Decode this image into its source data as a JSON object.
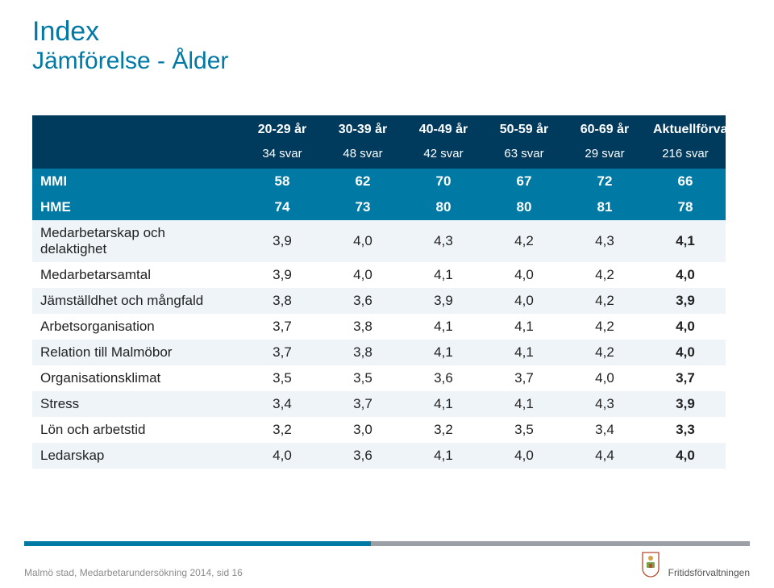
{
  "colors": {
    "brand_blue": "#0079a5",
    "header_navy": "#003a5d",
    "row_alt_bg": "#eef4f7",
    "row_bg": "#ffffff",
    "text": "#222222",
    "footer_grey": "#8c8c8c",
    "bar_grey": "#9aa0a6"
  },
  "title": "Index",
  "subtitle": "Jämförelse - Ålder",
  "table": {
    "col_headers": [
      "20-29 år",
      "30-39 år",
      "40-49 år",
      "50-59 år",
      "60-69 år",
      "Aktuellförvaltning"
    ],
    "sub_headers": [
      "34 svar",
      "48 svar",
      "42 svar",
      "63 svar",
      "29 svar",
      "216 svar"
    ],
    "rows": [
      {
        "label": "MMI",
        "values": [
          "58",
          "62",
          "70",
          "67",
          "72",
          "66"
        ],
        "highlight": true
      },
      {
        "label": "HME",
        "values": [
          "74",
          "73",
          "80",
          "80",
          "81",
          "78"
        ],
        "highlight": true
      },
      {
        "label": "Medarbetarskap och delaktighet",
        "values": [
          "3,9",
          "4,0",
          "4,3",
          "4,2",
          "4,3",
          "4,1"
        ]
      },
      {
        "label": "Medarbetarsamtal",
        "values": [
          "3,9",
          "4,0",
          "4,1",
          "4,0",
          "4,2",
          "4,0"
        ]
      },
      {
        "label": "Jämställdhet och mångfald",
        "values": [
          "3,8",
          "3,6",
          "3,9",
          "4,0",
          "4,2",
          "3,9"
        ]
      },
      {
        "label": "Arbetsorganisation",
        "values": [
          "3,7",
          "3,8",
          "4,1",
          "4,1",
          "4,2",
          "4,0"
        ]
      },
      {
        "label": "Relation till Malmöbor",
        "values": [
          "3,7",
          "3,8",
          "4,1",
          "4,1",
          "4,2",
          "4,0"
        ]
      },
      {
        "label": "Organisationsklimat",
        "values": [
          "3,5",
          "3,5",
          "3,6",
          "3,7",
          "4,0",
          "3,7"
        ]
      },
      {
        "label": "Stress",
        "values": [
          "3,4",
          "3,7",
          "4,1",
          "4,1",
          "4,3",
          "3,9"
        ]
      },
      {
        "label": "Lön och arbetstid",
        "values": [
          "3,2",
          "3,0",
          "3,2",
          "3,5",
          "3,4",
          "3,3"
        ]
      },
      {
        "label": "Ledarskap",
        "values": [
          "4,0",
          "3,6",
          "4,1",
          "4,0",
          "4,4",
          "4,0"
        ]
      }
    ]
  },
  "footer": {
    "left": "Malmö stad, Medarbetarundersökning 2014, sid 16",
    "right": "Fritidsförvaltningen"
  }
}
